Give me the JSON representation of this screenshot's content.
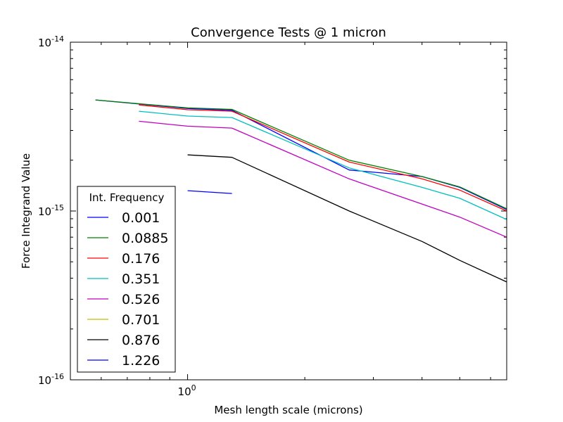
{
  "chart_data": {
    "type": "line",
    "title": "Convergence Tests @ 1 micron",
    "xlabel": "Mesh length scale (microns)",
    "ylabel": "Force Integrand Value",
    "x_scale": "log",
    "y_scale": "log",
    "xlim": [
      0.5,
      6.6
    ],
    "ylim": [
      1e-16,
      1e-14
    ],
    "xticks": [
      {
        "value": 1,
        "label": "10",
        "exp": "0"
      }
    ],
    "yticks": [
      {
        "value": 1e-16,
        "label": "10",
        "exp": "-16"
      },
      {
        "value": 1e-15,
        "label": "10",
        "exp": "-15"
      },
      {
        "value": 1e-14,
        "label": "10",
        "exp": "-14"
      }
    ],
    "legend": {
      "title": "Int. Frequency",
      "placement": "lower-left"
    },
    "series": [
      {
        "name": "0.001",
        "color": "#0000ff",
        "points": [
          [
            0.58,
            4.55e-15
          ],
          [
            1.0,
            4.05e-15
          ],
          [
            1.3,
            3.95e-15
          ],
          [
            2.6,
            1.75e-15
          ],
          [
            4.0,
            1.6e-15
          ],
          [
            5.0,
            1.38e-15
          ],
          [
            6.6,
            1.02e-15
          ]
        ]
      },
      {
        "name": "0.0885",
        "color": "#008000",
        "points": [
          [
            0.58,
            4.55e-15
          ],
          [
            1.0,
            4.08e-15
          ],
          [
            1.3,
            4e-15
          ],
          [
            2.6,
            2e-15
          ],
          [
            4.0,
            1.6e-15
          ],
          [
            5.0,
            1.39e-15
          ],
          [
            6.6,
            1.03e-15
          ]
        ]
      },
      {
        "name": "0.176",
        "color": "#ff0000",
        "points": [
          [
            0.75,
            4.25e-15
          ],
          [
            1.0,
            3.98e-15
          ],
          [
            1.3,
            3.9e-15
          ],
          [
            2.6,
            1.95e-15
          ],
          [
            4.0,
            1.55e-15
          ],
          [
            5.0,
            1.33e-15
          ],
          [
            6.6,
            1e-15
          ]
        ]
      },
      {
        "name": "0.351",
        "color": "#00bfbf",
        "points": [
          [
            0.75,
            3.9e-15
          ],
          [
            1.0,
            3.65e-15
          ],
          [
            1.3,
            3.58e-15
          ],
          [
            2.6,
            1.8e-15
          ],
          [
            4.0,
            1.38e-15
          ],
          [
            5.0,
            1.19e-15
          ],
          [
            6.6,
            8.9e-16
          ]
        ]
      },
      {
        "name": "0.526",
        "color": "#bf00bf",
        "points": [
          [
            0.75,
            3.4e-15
          ],
          [
            1.0,
            3.18e-15
          ],
          [
            1.3,
            3.1e-15
          ],
          [
            2.6,
            1.55e-15
          ],
          [
            4.0,
            1.1e-15
          ],
          [
            5.0,
            9.2e-16
          ],
          [
            6.6,
            7e-16
          ]
        ]
      },
      {
        "name": "0.701",
        "color": "#bfbf00",
        "points": []
      },
      {
        "name": "0.876",
        "color": "#000000",
        "points": [
          [
            1.0,
            2.15e-15
          ],
          [
            1.3,
            2.08e-15
          ],
          [
            2.6,
            1e-15
          ],
          [
            4.0,
            6.6e-16
          ],
          [
            5.0,
            5.1e-16
          ],
          [
            6.6,
            3.8e-16
          ]
        ]
      },
      {
        "name": "1.226",
        "color": "#0000ff",
        "points": [
          [
            1.0,
            1.32e-15
          ],
          [
            1.3,
            1.27e-15
          ]
        ]
      }
    ]
  }
}
